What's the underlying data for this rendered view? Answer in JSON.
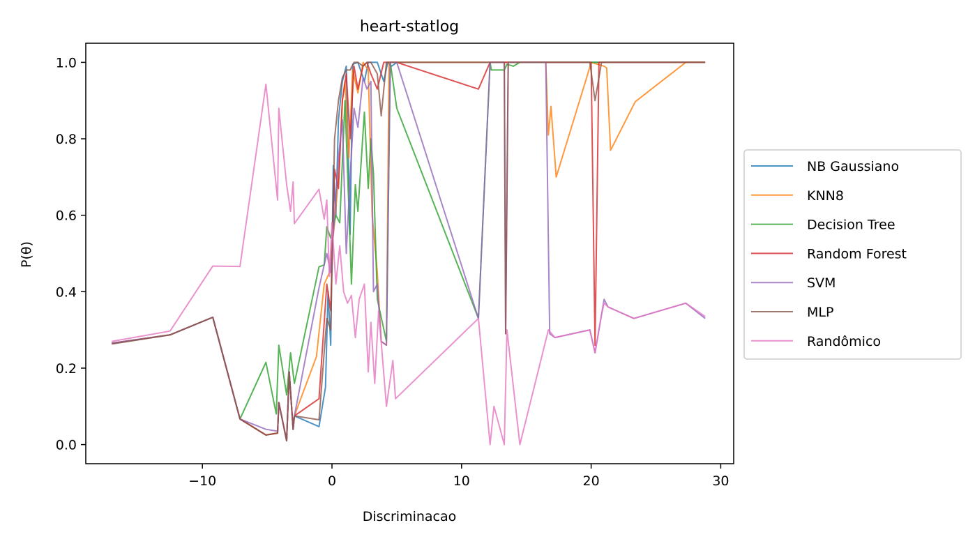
{
  "chart_data": {
    "type": "line",
    "title": "heart-statlog",
    "xlabel": "Discriminacao",
    "ylabel": "P(θ)",
    "xlim": [
      -19,
      31
    ],
    "ylim": [
      -0.05,
      1.05
    ],
    "xticks": [
      -10,
      0,
      10,
      20,
      30
    ],
    "xtick_labels": [
      "−10",
      "0",
      "10",
      "20",
      "30"
    ],
    "yticks": [
      0.0,
      0.2,
      0.4,
      0.6,
      0.8,
      1.0
    ],
    "ytick_labels": [
      "0.0",
      "0.2",
      "0.4",
      "0.6",
      "0.8",
      "1.0"
    ],
    "grid": false,
    "legend_position": "right",
    "series": [
      {
        "name": "NB Gaussiano",
        "color": "#1f77b4",
        "points": [
          [
            -17,
            0.265
          ],
          [
            -12.5,
            0.287
          ],
          [
            -9.2,
            0.333
          ],
          [
            -7.1,
            0.067
          ],
          [
            -5.1,
            0.025
          ],
          [
            -4.2,
            0.03
          ],
          [
            -4.1,
            0.11
          ],
          [
            -3.5,
            0.01
          ],
          [
            -3.3,
            0.19
          ],
          [
            -3.0,
            0.04
          ],
          [
            -2.9,
            0.075
          ],
          [
            -1.0,
            0.047
          ],
          [
            -0.5,
            0.15
          ],
          [
            -0.3,
            0.4
          ],
          [
            -0.1,
            0.26
          ],
          [
            0.1,
            0.73
          ],
          [
            0.3,
            0.6
          ],
          [
            0.5,
            0.85
          ],
          [
            0.8,
            0.95
          ],
          [
            1.1,
            0.99
          ],
          [
            1.4,
            0.55
          ],
          [
            1.6,
            0.995
          ],
          [
            2.0,
            1.0
          ],
          [
            2.5,
            0.95
          ],
          [
            2.8,
            1.0
          ],
          [
            3.5,
            1.0
          ],
          [
            4.0,
            0.95
          ],
          [
            4.3,
            1.0
          ],
          [
            4.6,
            0.99
          ],
          [
            5.0,
            1.0
          ],
          [
            10,
            1.0
          ],
          [
            15,
            1.0
          ],
          [
            20,
            1.0
          ],
          [
            21,
            1.0
          ],
          [
            28.8,
            1.0
          ]
        ]
      },
      {
        "name": "KNN8",
        "color": "#ff7f0e",
        "points": [
          [
            -17,
            0.265
          ],
          [
            -12.5,
            0.287
          ],
          [
            -9.2,
            0.333
          ],
          [
            -7.1,
            0.067
          ],
          [
            -5.1,
            0.025
          ],
          [
            -4.2,
            0.03
          ],
          [
            -4.1,
            0.11
          ],
          [
            -3.5,
            0.01
          ],
          [
            -3.3,
            0.19
          ],
          [
            -3.0,
            0.04
          ],
          [
            -2.9,
            0.075
          ],
          [
            -1.2,
            0.23
          ],
          [
            -0.6,
            0.42
          ],
          [
            -0.2,
            0.45
          ],
          [
            0.2,
            0.58
          ],
          [
            0.5,
            0.7
          ],
          [
            0.8,
            0.9
          ],
          [
            1.0,
            0.95
          ],
          [
            1.3,
            0.75
          ],
          [
            1.6,
            0.98
          ],
          [
            2.0,
            0.92
          ],
          [
            2.4,
            1.0
          ],
          [
            2.8,
            0.98
          ],
          [
            3.1,
            0.6
          ],
          [
            3.5,
            0.45
          ],
          [
            3.8,
            0.27
          ],
          [
            4.2,
            0.26
          ],
          [
            4.4,
            1.0
          ],
          [
            5,
            1.0
          ],
          [
            10,
            1.0
          ],
          [
            16.5,
            1.0
          ],
          [
            16.7,
            0.81
          ],
          [
            16.9,
            0.885
          ],
          [
            17.3,
            0.7
          ],
          [
            19.7,
            0.965
          ],
          [
            20.0,
            1.0
          ],
          [
            21.0,
            0.99
          ],
          [
            21.2,
            0.985
          ],
          [
            21.5,
            0.77
          ],
          [
            23.4,
            0.897
          ],
          [
            27.3,
            1.0
          ],
          [
            28.8,
            1.0
          ]
        ]
      },
      {
        "name": "Decision Tree",
        "color": "#2ca02c",
        "points": [
          [
            -17,
            0.265
          ],
          [
            -12.5,
            0.287
          ],
          [
            -9.2,
            0.333
          ],
          [
            -7.1,
            0.067
          ],
          [
            -5.1,
            0.215
          ],
          [
            -4.3,
            0.08
          ],
          [
            -4.1,
            0.26
          ],
          [
            -3.5,
            0.13
          ],
          [
            -3.2,
            0.24
          ],
          [
            -2.9,
            0.16
          ],
          [
            -1.0,
            0.465
          ],
          [
            -0.6,
            0.47
          ],
          [
            -0.4,
            0.57
          ],
          [
            -0.1,
            0.54
          ],
          [
            0.3,
            0.6
          ],
          [
            0.6,
            0.58
          ],
          [
            1.0,
            0.9
          ],
          [
            1.3,
            0.62
          ],
          [
            1.5,
            0.42
          ],
          [
            1.8,
            0.68
          ],
          [
            2.0,
            0.61
          ],
          [
            2.5,
            0.87
          ],
          [
            2.8,
            0.67
          ],
          [
            3.0,
            0.8
          ],
          [
            3.2,
            0.71
          ],
          [
            3.5,
            0.38
          ],
          [
            4.2,
            0.27
          ],
          [
            4.5,
            1.0
          ],
          [
            5,
            0.88
          ],
          [
            11.3,
            0.33
          ],
          [
            12.2,
            1.0
          ],
          [
            12.3,
            0.98
          ],
          [
            13.3,
            0.98
          ],
          [
            13.5,
            0.995
          ],
          [
            14,
            0.99
          ],
          [
            14.5,
            1.0
          ],
          [
            20,
            1.0
          ],
          [
            28.8,
            1.0
          ]
        ]
      },
      {
        "name": "Random Forest",
        "color": "#d62728",
        "points": [
          [
            -17,
            0.265
          ],
          [
            -12.5,
            0.287
          ],
          [
            -9.2,
            0.333
          ],
          [
            -7.1,
            0.067
          ],
          [
            -5.1,
            0.025
          ],
          [
            -4.2,
            0.03
          ],
          [
            -4.1,
            0.11
          ],
          [
            -3.5,
            0.01
          ],
          [
            -3.3,
            0.19
          ],
          [
            -3.0,
            0.04
          ],
          [
            -2.9,
            0.075
          ],
          [
            -1.0,
            0.12
          ],
          [
            -0.4,
            0.42
          ],
          [
            -0.1,
            0.35
          ],
          [
            0.2,
            0.72
          ],
          [
            0.5,
            0.67
          ],
          [
            0.8,
            0.9
          ],
          [
            1.1,
            0.97
          ],
          [
            1.4,
            0.8
          ],
          [
            1.7,
            0.99
          ],
          [
            2.0,
            0.93
          ],
          [
            2.4,
            0.99
          ],
          [
            2.7,
            1.0
          ],
          [
            3.0,
            0.97
          ],
          [
            3.5,
            0.93
          ],
          [
            4.0,
            1.0
          ],
          [
            5,
            1.0
          ],
          [
            11.3,
            0.93
          ],
          [
            12.2,
            1.0
          ],
          [
            20.0,
            1.0
          ],
          [
            20.3,
            0.26
          ],
          [
            20.6,
            1.0
          ],
          [
            28.8,
            1.0
          ]
        ]
      },
      {
        "name": "SVM",
        "color": "#9467bd",
        "points": [
          [
            -17,
            0.265
          ],
          [
            -12.5,
            0.287
          ],
          [
            -9.2,
            0.333
          ],
          [
            -7.1,
            0.067
          ],
          [
            -5.1,
            0.04
          ],
          [
            -4.2,
            0.035
          ],
          [
            -4.1,
            0.11
          ],
          [
            -3.5,
            0.01
          ],
          [
            -3.3,
            0.19
          ],
          [
            -3.0,
            0.04
          ],
          [
            -2.9,
            0.075
          ],
          [
            -1.0,
            0.41
          ],
          [
            -0.4,
            0.5
          ],
          [
            -0.1,
            0.45
          ],
          [
            0.2,
            0.6
          ],
          [
            0.5,
            0.75
          ],
          [
            0.8,
            0.85
          ],
          [
            1.1,
            0.5
          ],
          [
            1.4,
            0.7
          ],
          [
            1.7,
            0.88
          ],
          [
            2.0,
            0.83
          ],
          [
            2.4,
            0.96
          ],
          [
            2.7,
            0.93
          ],
          [
            3.0,
            0.95
          ],
          [
            3.2,
            0.4
          ],
          [
            3.5,
            0.42
          ],
          [
            3.8,
            0.27
          ],
          [
            4.2,
            0.26
          ],
          [
            4.5,
            1.0
          ],
          [
            5.0,
            1.0
          ],
          [
            11.3,
            0.33
          ],
          [
            12.2,
            1.0
          ],
          [
            13.3,
            1.0
          ],
          [
            13.4,
            0.29
          ],
          [
            13.6,
            1.0
          ],
          [
            16.5,
            1.0
          ],
          [
            16.8,
            0.29
          ],
          [
            17.2,
            0.28
          ],
          [
            19.9,
            0.3
          ],
          [
            20.3,
            0.24
          ],
          [
            20.8,
            0.34
          ],
          [
            21.0,
            0.38
          ],
          [
            21.3,
            0.36
          ],
          [
            23.3,
            0.33
          ],
          [
            27.3,
            0.37
          ],
          [
            28.8,
            0.33
          ]
        ]
      },
      {
        "name": "MLP",
        "color": "#8c564b",
        "points": [
          [
            -17,
            0.263
          ],
          [
            -12.5,
            0.287
          ],
          [
            -9.2,
            0.333
          ],
          [
            -7.1,
            0.067
          ],
          [
            -5.1,
            0.025
          ],
          [
            -4.2,
            0.03
          ],
          [
            -4.1,
            0.11
          ],
          [
            -3.5,
            0.01
          ],
          [
            -3.3,
            0.19
          ],
          [
            -3.0,
            0.04
          ],
          [
            -2.9,
            0.075
          ],
          [
            -1.0,
            0.065
          ],
          [
            -0.4,
            0.33
          ],
          [
            -0.1,
            0.3
          ],
          [
            0.2,
            0.8
          ],
          [
            0.5,
            0.9
          ],
          [
            0.8,
            0.96
          ],
          [
            1.1,
            0.98
          ],
          [
            1.4,
            0.98
          ],
          [
            1.7,
            1.0
          ],
          [
            2.0,
            1.0
          ],
          [
            2.4,
            0.99
          ],
          [
            2.7,
            1.0
          ],
          [
            3.0,
            1.0
          ],
          [
            3.5,
            0.97
          ],
          [
            3.8,
            0.86
          ],
          [
            4.2,
            1.0
          ],
          [
            5.0,
            1.0
          ],
          [
            12.2,
            1.0
          ],
          [
            13.3,
            1.0
          ],
          [
            13.4,
            0.29
          ],
          [
            13.6,
            1.0
          ],
          [
            19.9,
            1.0
          ],
          [
            20.3,
            0.9
          ],
          [
            20.8,
            1.0
          ],
          [
            28.8,
            1.0
          ]
        ]
      },
      {
        "name": "Randômico",
        "color": "#e377c2",
        "points": [
          [
            -17,
            0.27
          ],
          [
            -12.5,
            0.297
          ],
          [
            -9.2,
            0.467
          ],
          [
            -7.1,
            0.466
          ],
          [
            -5.1,
            0.943
          ],
          [
            -4.2,
            0.64
          ],
          [
            -4.1,
            0.88
          ],
          [
            -3.5,
            0.68
          ],
          [
            -3.2,
            0.61
          ],
          [
            -3.0,
            0.687
          ],
          [
            -2.9,
            0.578
          ],
          [
            -1.0,
            0.668
          ],
          [
            -0.6,
            0.59
          ],
          [
            -0.4,
            0.64
          ],
          [
            -0.2,
            0.44
          ],
          [
            0.0,
            0.58
          ],
          [
            0.3,
            0.42
          ],
          [
            0.6,
            0.52
          ],
          [
            0.9,
            0.4
          ],
          [
            1.2,
            0.37
          ],
          [
            1.5,
            0.39
          ],
          [
            1.8,
            0.28
          ],
          [
            2.1,
            0.38
          ],
          [
            2.5,
            0.42
          ],
          [
            2.8,
            0.19
          ],
          [
            3.0,
            0.32
          ],
          [
            3.3,
            0.16
          ],
          [
            3.6,
            0.35
          ],
          [
            4.2,
            0.1
          ],
          [
            4.7,
            0.22
          ],
          [
            4.9,
            0.12
          ],
          [
            11.3,
            0.33
          ],
          [
            12.2,
            0.0
          ],
          [
            12.5,
            0.1
          ],
          [
            13.3,
            0.0
          ],
          [
            13.5,
            0.3
          ],
          [
            14.5,
            0.0
          ],
          [
            16.7,
            0.3
          ],
          [
            17.2,
            0.28
          ],
          [
            19.9,
            0.3
          ],
          [
            20.3,
            0.24
          ],
          [
            20.8,
            0.34
          ],
          [
            21.0,
            0.37
          ],
          [
            21.3,
            0.36
          ],
          [
            23.3,
            0.33
          ],
          [
            27.3,
            0.37
          ],
          [
            28.8,
            0.335
          ]
        ]
      }
    ]
  }
}
